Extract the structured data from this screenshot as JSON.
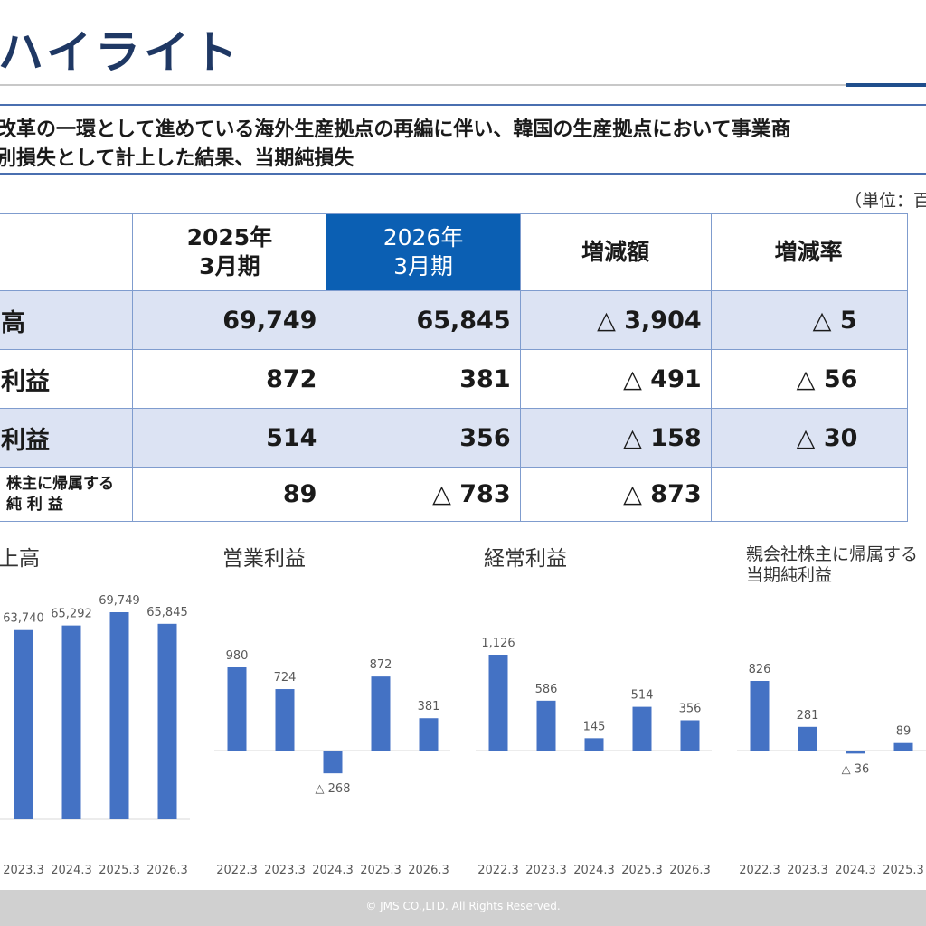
{
  "header": {
    "title": "ハイライト"
  },
  "summary": {
    "line1": "改革の一環として進めている海外生産拠点の再編に伴い、韓国の生産拠点において事業商",
    "line2": "別損失として計上した結果、当期純損失"
  },
  "unit_note": "（単位：百",
  "table": {
    "columns": [
      "2025年\n3月期",
      "2026年\n3月期",
      "増減額",
      "増減率"
    ],
    "rows": [
      {
        "label": "高",
        "values": [
          "69,749",
          "65,845",
          "△ 3,904",
          "△ 5"
        ]
      },
      {
        "label": "利益",
        "values": [
          "872",
          "381",
          "△ 491",
          "△ 56"
        ]
      },
      {
        "label": "利益",
        "values": [
          "514",
          "356",
          "△ 158",
          "△ 30"
        ]
      },
      {
        "label": "株主に帰属する\n純 利 益",
        "values": [
          "89",
          "△ 783",
          "△ 873",
          ""
        ]
      }
    ]
  },
  "chart_data": [
    {
      "type": "bar",
      "title": "上高",
      "categories": [
        "2023.3",
        "2024.3",
        "2025.3",
        "2026.3"
      ],
      "values": [
        63740,
        65292,
        69749,
        65845
      ],
      "labels": [
        "63,740",
        "65,292",
        "69,749",
        "65,845"
      ],
      "color": "#4472c4"
    },
    {
      "type": "bar",
      "title": "営業利益",
      "categories": [
        "2022.3",
        "2023.3",
        "2024.3",
        "2025.3",
        "2026.3"
      ],
      "values": [
        980,
        724,
        -268,
        872,
        381
      ],
      "labels": [
        "980",
        "724",
        "△ 268",
        "872",
        "381"
      ],
      "color": "#4472c4"
    },
    {
      "type": "bar",
      "title": "経常利益",
      "categories": [
        "2022.3",
        "2023.3",
        "2024.3",
        "2025.3",
        "2026.3"
      ],
      "values": [
        1126,
        586,
        145,
        514,
        356
      ],
      "labels": [
        "1,126",
        "586",
        "145",
        "514",
        "356"
      ],
      "color": "#4472c4"
    },
    {
      "type": "bar",
      "title": "親会社株主に帰属する\n当期純利益",
      "categories": [
        "2022.3",
        "2023.3",
        "2024.3",
        "2025.3"
      ],
      "values": [
        826,
        281,
        -36,
        89
      ],
      "labels": [
        "826",
        "281",
        "△ 36",
        "89"
      ],
      "color": "#4472c4"
    }
  ],
  "footer": {
    "copyright": "© JMS CO.,LTD.  All Rights Reserved."
  }
}
